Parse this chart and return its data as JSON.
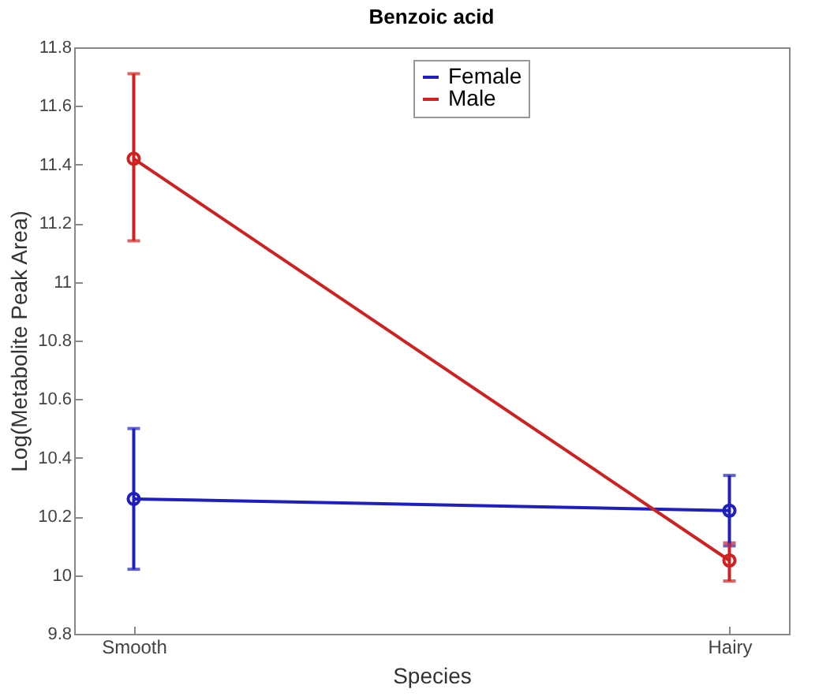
{
  "chart_data": {
    "type": "line",
    "title": "Benzoic acid",
    "xlabel": "Species",
    "ylabel": "Log(Metabolite Peak Area)",
    "categories": [
      "Smooth",
      "Hairy"
    ],
    "series": [
      {
        "name": "Female",
        "color": "#1f1fc0",
        "values": [
          10.26,
          10.22
        ],
        "errors": [
          [
            10.02,
            10.5
          ],
          [
            10.1,
            10.34
          ]
        ]
      },
      {
        "name": "Male",
        "color": "#d02020",
        "values": [
          11.42,
          10.05
        ],
        "errors": [
          [
            11.14,
            11.71
          ],
          [
            9.98,
            10.11
          ]
        ]
      }
    ],
    "ylim": [
      9.8,
      11.8
    ],
    "yticks": [
      9.8,
      10,
      10.2,
      10.4,
      10.6,
      10.8,
      11,
      11.2,
      11.4,
      11.6,
      11.8
    ],
    "legend": "top",
    "marker": "circle",
    "line_style": "solid",
    "grid": false
  }
}
